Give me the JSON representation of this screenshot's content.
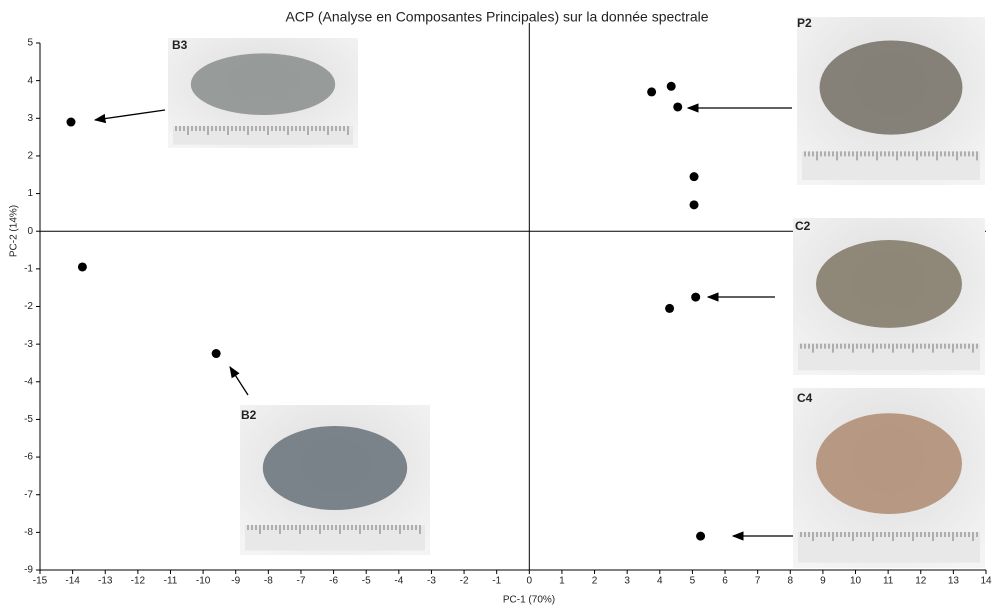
{
  "chart_data": {
    "type": "scatter",
    "title": "ACP (Analyse en Composantes Principales) sur la donnée spectrale",
    "x_label": "PC-1 (70%)",
    "y_label": "PC-2 (14%)",
    "x": [
      -14.05,
      -13.7,
      -9.6,
      3.75,
      4.35,
      4.55,
      5.05,
      5.05,
      5.1,
      4.3,
      5.25
    ],
    "values": [
      2.9,
      -0.95,
      -3.25,
      3.7,
      3.85,
      3.3,
      1.45,
      0.7,
      -1.75,
      -2.05,
      -8.1
    ],
    "color": "#000000",
    "xlim": [
      -15,
      14
    ],
    "ylim": [
      -9,
      5
    ],
    "xticks": [
      -15,
      -14,
      -13,
      -12,
      -11,
      -10,
      -9,
      -8,
      -7,
      -6,
      -5,
      -4,
      -3,
      -2,
      -1,
      0,
      1,
      2,
      3,
      4,
      5,
      6,
      7,
      8,
      9,
      10,
      11,
      12,
      13,
      14
    ],
    "yticks": [
      -9,
      -8,
      -7,
      -6,
      -5,
      -4,
      -3,
      -2,
      -1,
      0,
      1,
      2,
      3,
      4,
      5
    ],
    "annotations": [
      "B3",
      "P2",
      "C2",
      "C4",
      "B2"
    ]
  }
}
